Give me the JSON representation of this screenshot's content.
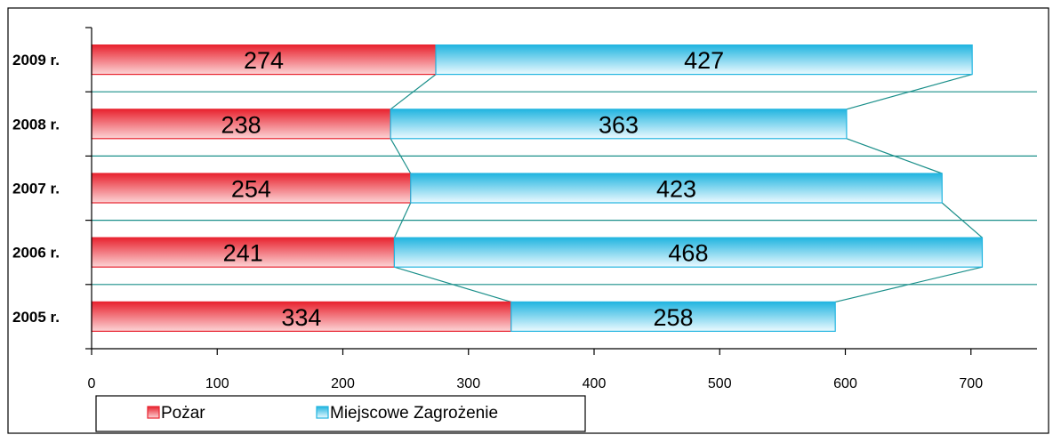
{
  "chart_data": {
    "type": "bar",
    "orientation": "horizontal",
    "stacked": true,
    "categories": [
      "2005 r.",
      "2006 r.",
      "2007 r.",
      "2008 r.",
      "2009 r."
    ],
    "series": [
      {
        "name": "Pożar",
        "values": [
          334,
          241,
          254,
          238,
          274
        ],
        "color": "#e8232f",
        "fill_light": "#fcd4d6"
      },
      {
        "name": "Miejscowe Zagrożenie",
        "values": [
          258,
          468,
          423,
          363,
          427
        ],
        "color": "#22b5e0",
        "fill_light": "#ecfaff"
      }
    ],
    "value_labels": {
      "Pożar": [
        "334",
        "241",
        "254",
        "238",
        "274"
      ],
      "Miejscowe Zagrożenie": [
        "258",
        "468",
        "423",
        "363",
        "427"
      ]
    },
    "xlim": [
      0,
      750
    ],
    "x_ticks": [
      "0",
      "100",
      "200",
      "300",
      "400",
      "500",
      "600",
      "700"
    ],
    "xlabel": "",
    "ylabel": "",
    "title": "",
    "grid": true,
    "grid_color": "#1a8f8a",
    "series_lines": true,
    "legend_position": "bottom-left"
  }
}
